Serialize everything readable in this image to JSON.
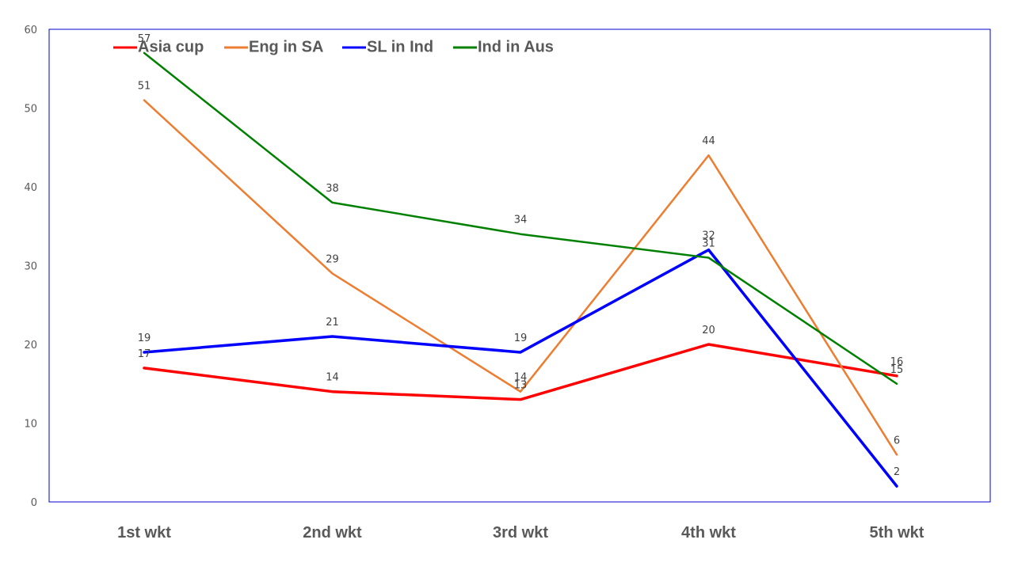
{
  "chart_data": {
    "type": "line",
    "title": "",
    "xlabel": "",
    "ylabel": "",
    "categories": [
      "1st wkt",
      "2nd wkt",
      "3rd wkt",
      "4th wkt",
      "5th wkt"
    ],
    "ylim": [
      0,
      60
    ],
    "yticks": [
      0,
      10,
      20,
      30,
      40,
      50,
      60
    ],
    "grid": false,
    "legend_position": "top-left",
    "data_labels": true,
    "series": [
      {
        "name": "Asia cup",
        "color": "#ff0000",
        "values": [
          17,
          14,
          13,
          20,
          16
        ]
      },
      {
        "name": "Eng in SA",
        "color": "#ed7d31",
        "values": [
          51,
          29,
          14,
          44,
          6
        ]
      },
      {
        "name": "SL in Ind",
        "color": "#0000ff",
        "values": [
          19,
          21,
          19,
          32,
          2
        ]
      },
      {
        "name": "Ind in Aus",
        "color": "#008000",
        "values": [
          57,
          38,
          34,
          31,
          15
        ]
      }
    ]
  },
  "colors": {
    "plot_border": "#0000cc",
    "axis_text": "#595959",
    "data_label_text": "#404040"
  }
}
